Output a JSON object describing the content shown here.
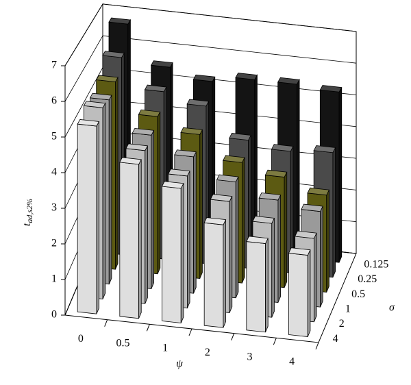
{
  "chart_data": {
    "type": "bar3d",
    "y_label": "t",
    "y_label_sub": "ad,s2%",
    "x_label": "ψ",
    "z_label": "σ",
    "categories": [
      "0",
      "0.5",
      "1",
      "2",
      "3",
      "4"
    ],
    "series": [
      {
        "name": "0.125",
        "color": "#141414",
        "values": [
          6.7,
          5.5,
          5.2,
          5.4,
          5.4,
          5.3
        ]
      },
      {
        "name": "0.25",
        "color": "#4a4a4a",
        "values": [
          6.0,
          5.1,
          4.8,
          3.9,
          3.7,
          3.8
        ]
      },
      {
        "name": "0.5",
        "color": "#5c5a12",
        "values": [
          5.6,
          4.7,
          4.3,
          3.6,
          3.3,
          2.9
        ]
      },
      {
        "name": "1",
        "color": "#9a9a9a",
        "values": [
          5.4,
          4.5,
          4.0,
          3.4,
          3.0,
          2.8
        ]
      },
      {
        "name": "2",
        "color": "#bdbdbd",
        "values": [
          5.5,
          4.4,
          3.8,
          3.2,
          2.7,
          2.4
        ]
      },
      {
        "name": "4",
        "color": "#dedede",
        "values": [
          5.3,
          4.35,
          3.8,
          2.9,
          2.5,
          2.3
        ]
      }
    ],
    "ylim": [
      0,
      7
    ],
    "yticks": [
      0,
      1,
      2,
      3,
      4,
      5,
      6,
      7
    ],
    "grid": true
  }
}
